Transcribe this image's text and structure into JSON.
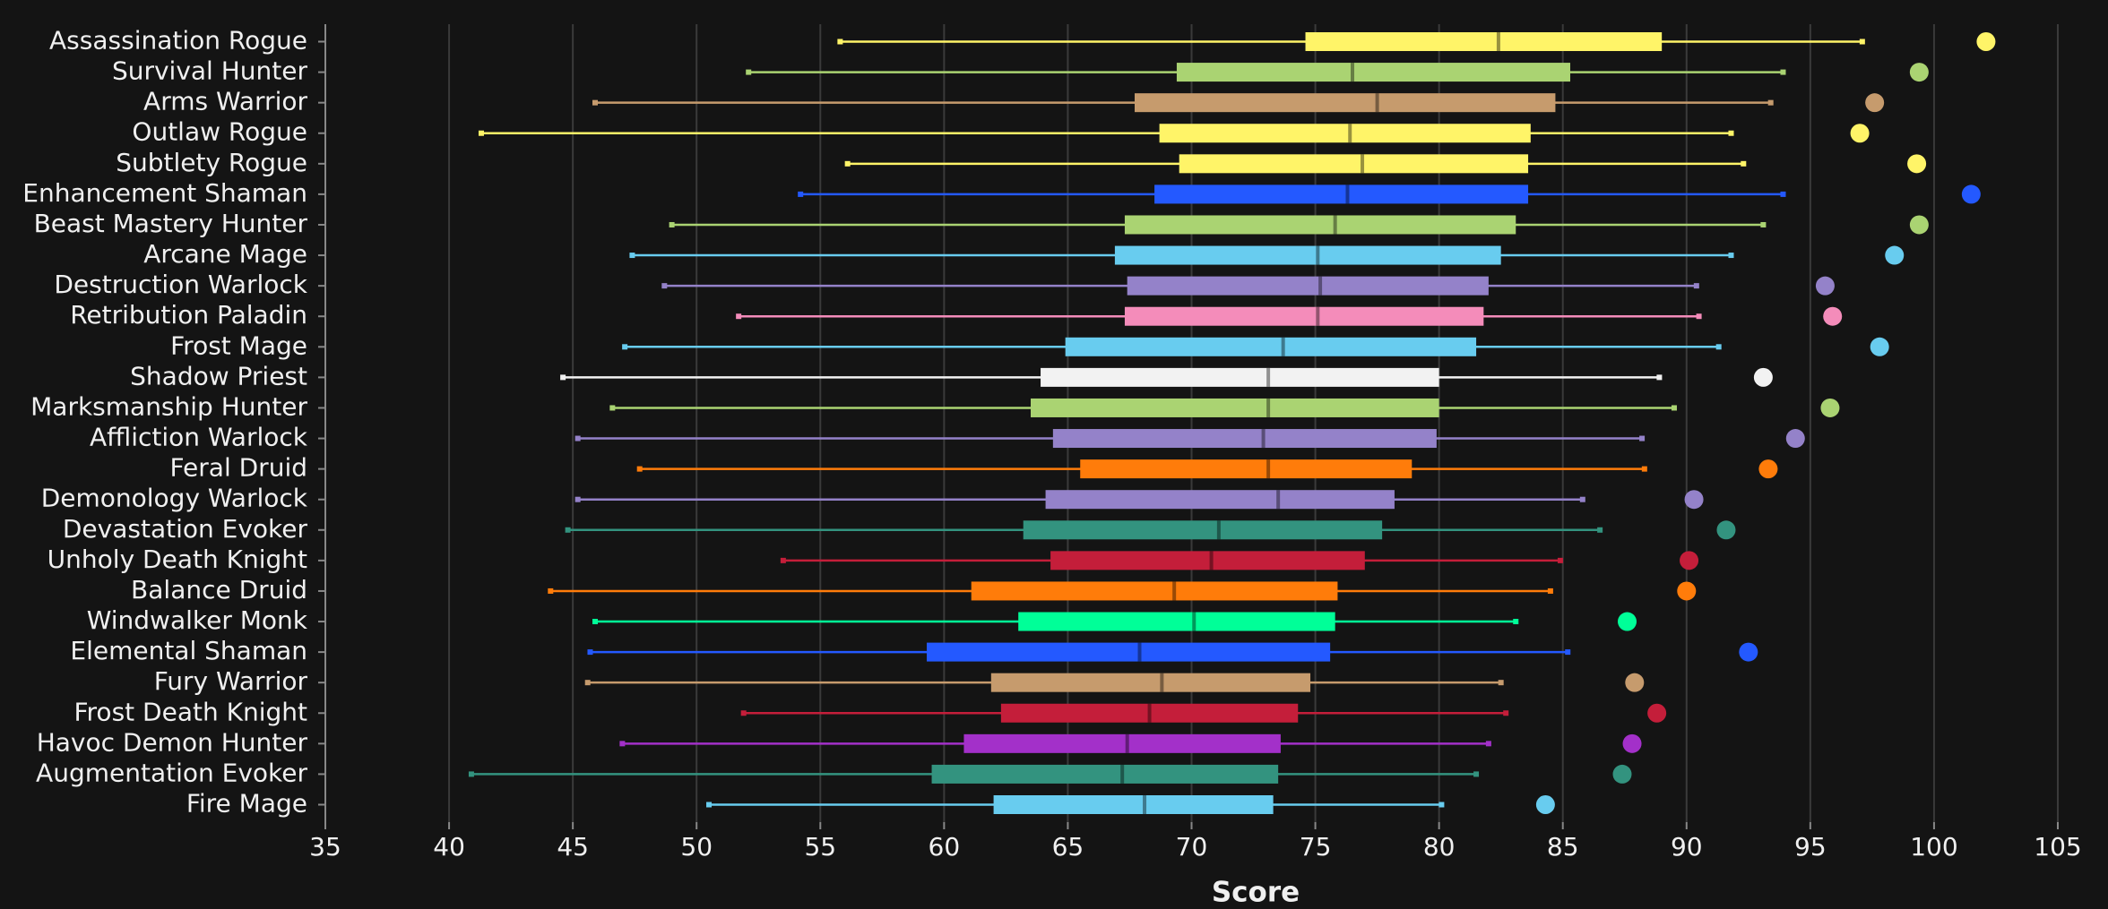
{
  "chart_data": {
    "type": "box",
    "xlabel": "Score",
    "categories": [
      "Assassination Rogue",
      "Survival Hunter",
      "Arms Warrior",
      "Outlaw Rogue",
      "Subtlety Rogue",
      "Enhancement Shaman",
      "Beast Mastery Hunter",
      "Arcane Mage",
      "Destruction Warlock",
      "Retribution Paladin",
      "Frost Mage",
      "Shadow Priest",
      "Marksmanship Hunter",
      "Affliction Warlock",
      "Feral Druid",
      "Demonology Warlock",
      "Devastation Evoker",
      "Unholy Death Knight",
      "Balance Druid",
      "Windwalker Monk",
      "Elemental Shaman",
      "Fury Warrior",
      "Frost Death Knight",
      "Havoc Demon Hunter",
      "Augmentation Evoker",
      "Fire Mage"
    ],
    "colors": [
      "#fff468",
      "#aad372",
      "#c69b6d",
      "#fff468",
      "#fff468",
      "#2459ff",
      "#aad372",
      "#68ccef",
      "#9482c9",
      "#f48cba",
      "#68ccef",
      "#f2f2f2",
      "#aad372",
      "#9482c9",
      "#ff7c0a",
      "#9482c9",
      "#33937f",
      "#c41e3a",
      "#ff7c0a",
      "#00ff98",
      "#2459ff",
      "#c69b6d",
      "#c41e3a",
      "#a330c9",
      "#33937f",
      "#68ccef"
    ],
    "low": [
      55.8,
      52.1,
      45.9,
      41.3,
      56.1,
      54.2,
      49.0,
      47.4,
      48.7,
      51.7,
      47.1,
      44.6,
      46.6,
      45.2,
      47.7,
      45.2,
      44.8,
      53.5,
      44.1,
      45.9,
      45.7,
      45.6,
      51.9,
      47.0,
      40.9,
      50.5
    ],
    "q1": [
      74.6,
      69.4,
      67.7,
      68.7,
      69.5,
      68.5,
      67.3,
      66.9,
      67.4,
      67.3,
      64.9,
      63.9,
      63.5,
      64.4,
      65.5,
      64.1,
      63.2,
      64.3,
      61.1,
      63.0,
      59.3,
      61.9,
      62.3,
      60.8,
      59.5,
      62.0
    ],
    "median": [
      82.4,
      76.5,
      77.5,
      76.4,
      76.9,
      76.3,
      75.8,
      75.1,
      75.2,
      75.1,
      73.7,
      73.1,
      73.1,
      72.9,
      73.1,
      73.5,
      71.1,
      70.8,
      69.3,
      70.1,
      67.9,
      68.8,
      68.3,
      67.4,
      67.2,
      68.1
    ],
    "q3": [
      89.0,
      85.3,
      84.7,
      83.7,
      83.6,
      83.6,
      83.1,
      82.5,
      82.0,
      81.8,
      81.5,
      80.0,
      80.0,
      79.9,
      78.9,
      78.2,
      77.7,
      77.0,
      75.9,
      75.8,
      75.6,
      74.8,
      74.3,
      73.6,
      73.5,
      73.3
    ],
    "high": [
      97.1,
      93.9,
      93.4,
      91.8,
      92.3,
      93.9,
      93.1,
      91.8,
      90.4,
      90.5,
      91.3,
      88.9,
      89.5,
      88.2,
      88.3,
      85.8,
      86.5,
      84.9,
      84.5,
      83.1,
      85.2,
      82.5,
      82.7,
      82.0,
      81.5,
      80.1
    ],
    "outliers": [
      102.1,
      99.4,
      97.6,
      97.0,
      99.3,
      101.5,
      99.4,
      98.4,
      95.6,
      95.9,
      97.8,
      93.1,
      95.8,
      94.4,
      93.3,
      90.3,
      91.6,
      90.1,
      90.0,
      87.6,
      92.5,
      87.9,
      88.8,
      87.8,
      87.4,
      84.3
    ],
    "xlim": [
      35,
      105
    ],
    "xticks": [
      35,
      40,
      45,
      50,
      55,
      60,
      65,
      70,
      75,
      80,
      85,
      90,
      95,
      100,
      105
    ],
    "grid": true
  }
}
